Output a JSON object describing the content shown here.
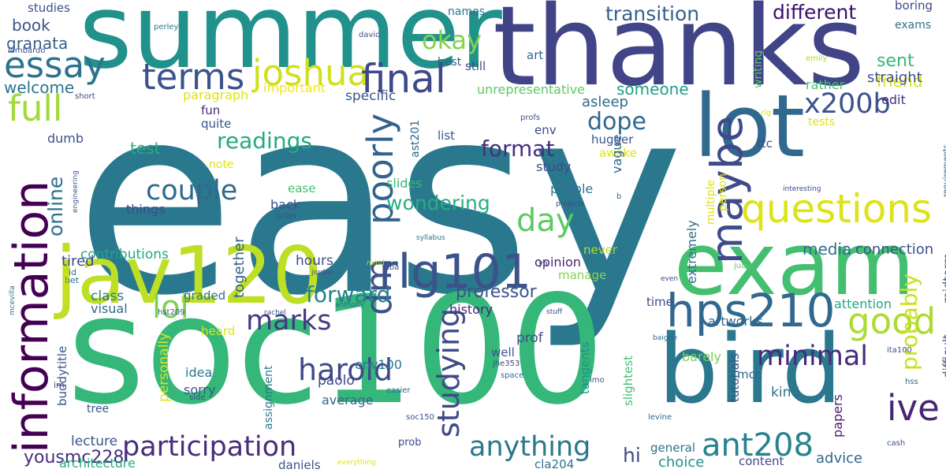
{
  "words": [
    {
      "text": "easy",
      "color": "#2a788e"
    },
    {
      "text": "soc100",
      "color": "#35b779"
    },
    {
      "text": "thanks",
      "color": "#414487"
    },
    {
      "text": "summer",
      "color": "#21918c"
    },
    {
      "text": "bird",
      "color": "#2a788e"
    },
    {
      "text": "exam",
      "color": "#44bf70"
    },
    {
      "text": "lot",
      "color": "#31688e"
    },
    {
      "text": "jav120",
      "color": "#bddf26"
    },
    {
      "text": "information",
      "color": "#440154"
    },
    {
      "text": "rlg101",
      "color": "#3b528b"
    },
    {
      "text": "hps210",
      "color": "#31688e"
    },
    {
      "text": "questions",
      "color": "#dde318"
    },
    {
      "text": "maybe",
      "color": "#3e4a89"
    },
    {
      "text": "essay",
      "color": "#2c728e"
    },
    {
      "text": "terms",
      "color": "#3b528b"
    },
    {
      "text": "joshua",
      "color": "#d0e11c"
    },
    {
      "text": "final",
      "color": "#3e4989"
    },
    {
      "text": "full",
      "color": "#a0da39"
    },
    {
      "text": "good",
      "color": "#addc30"
    },
    {
      "text": "dm",
      "color": "#3b528b"
    },
    {
      "text": "ant208",
      "color": "#26828e"
    },
    {
      "text": "participation",
      "color": "#472d7b"
    },
    {
      "text": "anything",
      "color": "#2a788e"
    },
    {
      "text": "studying",
      "color": "#3e4a89"
    },
    {
      "text": "poorly",
      "color": "#33638d"
    },
    {
      "text": "couple",
      "color": "#31688e"
    },
    {
      "text": "harold",
      "color": "#3e4989"
    },
    {
      "text": "day",
      "color": "#5ec962"
    },
    {
      "text": "x200b",
      "color": "#3b528b"
    },
    {
      "text": "ive",
      "color": "#482475"
    },
    {
      "text": "minimal",
      "color": "#472c7a"
    },
    {
      "text": "marks",
      "color": "#443983"
    },
    {
      "text": "lol",
      "color": "#7ad151"
    },
    {
      "text": "okay",
      "color": "#84d44b"
    },
    {
      "text": "transition",
      "color": "#355f8d"
    },
    {
      "text": "different",
      "color": "#3b0f70"
    },
    {
      "text": "dope",
      "color": "#31688e"
    },
    {
      "text": "format",
      "color": "#46307e"
    },
    {
      "text": "readings",
      "color": "#23a983"
    },
    {
      "text": "forward",
      "color": "#26828e"
    },
    {
      "text": "online",
      "color": "#2d708e"
    },
    {
      "text": "wondering",
      "color": "#27ad81"
    },
    {
      "text": "probably",
      "color": "#cae11f"
    },
    {
      "text": "professor",
      "color": "#39568c"
    },
    {
      "text": "yousmc228",
      "color": "#472d7b"
    },
    {
      "text": "someone",
      "color": "#1f9f88"
    },
    {
      "text": "sent",
      "color": "#37b878"
    },
    {
      "text": "friend",
      "color": "#d8e219"
    },
    {
      "text": "straight",
      "color": "#3d4d8a"
    },
    {
      "text": "media",
      "color": "#2e6e8e"
    },
    {
      "text": "connection",
      "color": "#3b528b"
    },
    {
      "text": "book",
      "color": "#3b528b"
    },
    {
      "text": "granata",
      "color": "#355f8d"
    },
    {
      "text": "welcome",
      "color": "#2c738e"
    },
    {
      "text": "paragraph",
      "color": "#dde318"
    },
    {
      "text": "important",
      "color": "#f1e51d"
    },
    {
      "text": "specific",
      "color": "#39568c"
    },
    {
      "text": "unrepresentative",
      "color": "#5ec962"
    },
    {
      "text": "asleep",
      "color": "#306a8e"
    },
    {
      "text": "edit",
      "color": "#46327e"
    },
    {
      "text": "rather",
      "color": "#48c16e"
    },
    {
      "text": "test",
      "color": "#29af7f"
    },
    {
      "text": "dumb",
      "color": "#3b528b"
    },
    {
      "text": "contributions",
      "color": "#22a785"
    },
    {
      "text": "tired",
      "color": "#3e4a89"
    },
    {
      "text": "hi",
      "color": "#3e4989"
    },
    {
      "text": "advice",
      "color": "#31688e"
    },
    {
      "text": "lecture",
      "color": "#39568c"
    },
    {
      "text": "architecture",
      "color": "#27ad81"
    },
    {
      "text": "daniels",
      "color": "#3b528b"
    },
    {
      "text": "cla204",
      "color": "#2c738e"
    },
    {
      "text": "content",
      "color": "#3e4989"
    },
    {
      "text": "choice",
      "color": "#21918c"
    },
    {
      "text": "general",
      "color": "#2d708e"
    },
    {
      "text": "papers",
      "color": "#481b6d"
    },
    {
      "text": "kind",
      "color": "#2c728e"
    },
    {
      "text": "tutorials",
      "color": "#3b528b"
    },
    {
      "text": "history",
      "color": "#482878"
    },
    {
      "text": "env100",
      "color": "#2a788e"
    },
    {
      "text": "average",
      "color": "#31688e"
    },
    {
      "text": "paolo",
      "color": "#3f4889"
    },
    {
      "text": "sorry",
      "color": "#39568c"
    },
    {
      "text": "idea",
      "color": "#2a788e"
    },
    {
      "text": "graded",
      "color": "#2e6e8e"
    },
    {
      "text": "heard",
      "color": "#dde318"
    },
    {
      "text": "class",
      "color": "#2a788e"
    },
    {
      "text": "visual",
      "color": "#31688e"
    },
    {
      "text": "hours",
      "color": "#3e4a89"
    },
    {
      "text": "together",
      "color": "#355f8d"
    },
    {
      "text": "back",
      "color": "#3b528b"
    },
    {
      "text": "things",
      "color": "#3e4989"
    },
    {
      "text": "ease",
      "color": "#44bf70"
    },
    {
      "text": "people",
      "color": "#2c728e"
    },
    {
      "text": "study",
      "color": "#3e4a89"
    },
    {
      "text": "slides",
      "color": "#35b779"
    },
    {
      "text": "note",
      "color": "#dde318"
    },
    {
      "text": "fun",
      "color": "#482878"
    },
    {
      "text": "quite",
      "color": "#3b528b"
    },
    {
      "text": "opinion",
      "color": "#481f70"
    },
    {
      "text": "never",
      "color": "#addc30"
    },
    {
      "text": "manage",
      "color": "#84d44b"
    },
    {
      "text": "time",
      "color": "#3e4989"
    },
    {
      "text": "extremely",
      "color": "#2d708e"
    },
    {
      "text": "attention",
      "color": "#22a785"
    },
    {
      "text": "midterm",
      "color": "#355f8d"
    },
    {
      "text": "artworks",
      "color": "#31688e"
    },
    {
      "text": "barely",
      "color": "#7ad151"
    },
    {
      "text": "slightest",
      "color": "#44bf70"
    },
    {
      "text": "tangents",
      "color": "#21918c"
    },
    {
      "text": "prof",
      "color": "#3e4a89"
    },
    {
      "text": "well",
      "color": "#3b528b"
    },
    {
      "text": "personally",
      "color": "#dde318"
    },
    {
      "text": "assignment",
      "color": "#2a788e"
    },
    {
      "text": "mcq",
      "color": "#31688e"
    },
    {
      "text": "buddytitle",
      "color": "#39568c"
    },
    {
      "text": "tree",
      "color": "#3b528b"
    },
    {
      "text": "studies",
      "color": "#3b528b"
    },
    {
      "text": "names",
      "color": "#2c728e"
    },
    {
      "text": "boring",
      "color": "#3e4989"
    },
    {
      "text": "exams",
      "color": "#2c728e"
    },
    {
      "text": "best",
      "color": "#39568c"
    },
    {
      "text": "art",
      "color": "#31688e"
    },
    {
      "text": "still",
      "color": "#3e4a89"
    },
    {
      "text": "writing",
      "color": "#5ec962"
    },
    {
      "text": "hugger",
      "color": "#3b528b"
    },
    {
      "text": "awake",
      "color": "#dde318"
    },
    {
      "text": "vague",
      "color": "#31688e"
    },
    {
      "text": "ttc",
      "color": "#3b528b"
    },
    {
      "text": "tests",
      "color": "#dde318"
    },
    {
      "text": "list",
      "color": "#3b528b"
    },
    {
      "text": "env",
      "color": "#3e4989"
    },
    {
      "text": "ast201",
      "color": "#31688e"
    },
    {
      "text": "person",
      "color": "#dde318"
    },
    {
      "text": "multiple",
      "color": "#dde318"
    },
    {
      "text": "difficult",
      "color": "#3b528b"
    },
    {
      "text": "perley",
      "color": "#2a788e"
    },
    {
      "text": "lombardo",
      "color": "#39568c"
    },
    {
      "text": "david",
      "color": "#3b528b"
    },
    {
      "text": "emily",
      "color": "#addc30"
    },
    {
      "text": "short",
      "color": "#3e4989"
    },
    {
      "text": "profs",
      "color": "#3b528b"
    },
    {
      "text": "rlg",
      "color": "#dde318"
    },
    {
      "text": "requirements",
      "color": "#31688e"
    },
    {
      "text": "engineering",
      "color": "#3b528b"
    },
    {
      "text": "interesting",
      "color": "#3e4989"
    },
    {
      "text": "b",
      "color": "#31688e"
    },
    {
      "text": "brian",
      "color": "#3b528b"
    },
    {
      "text": "projects",
      "color": "#3e4a89"
    },
    {
      "text": "syllabus",
      "color": "#2c728e"
    },
    {
      "text": "mind",
      "color": "#addc30"
    },
    {
      "text": "tba",
      "color": "#3b528b"
    },
    {
      "text": "ya",
      "color": "#31688e"
    },
    {
      "text": "jordan",
      "color": "#3b528b"
    },
    {
      "text": "even",
      "color": "#3e4989"
    },
    {
      "text": "juan",
      "color": "#5ec962"
    },
    {
      "text": "id",
      "color": "#31688e"
    },
    {
      "text": "bet",
      "color": "#2c728e"
    },
    {
      "text": "category",
      "color": "#dde318"
    },
    {
      "text": "mcevilla",
      "color": "#2a788e"
    },
    {
      "text": "hst209",
      "color": "#3b528b"
    },
    {
      "text": "anthony",
      "color": "#31688e"
    },
    {
      "text": "rachel",
      "color": "#3b528b"
    },
    {
      "text": "stuff",
      "color": "#3e4989"
    },
    {
      "text": "baigrie",
      "color": "#31688e"
    },
    {
      "text": "ita100",
      "color": "#3b528b"
    },
    {
      "text": "jhe353",
      "color": "#3e4989"
    },
    {
      "text": "space",
      "color": "#2c728e"
    },
    {
      "text": "imo",
      "color": "#3b528b"
    },
    {
      "text": "hss",
      "color": "#31688e"
    },
    {
      "text": "side",
      "color": "#3b528b"
    },
    {
      "text": "im",
      "color": "#3e4989"
    },
    {
      "text": "easier",
      "color": "#31688e"
    },
    {
      "text": "soc150",
      "color": "#3b528b"
    },
    {
      "text": "prob",
      "color": "#3e4989"
    },
    {
      "text": "levine",
      "color": "#31688e"
    },
    {
      "text": "cash",
      "color": "#3b528b"
    },
    {
      "text": "everything",
      "color": "#dde318"
    }
  ]
}
